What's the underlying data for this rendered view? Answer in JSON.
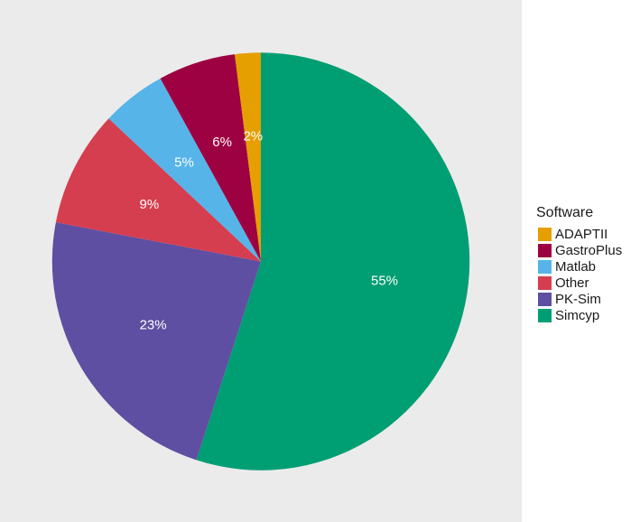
{
  "chart_data": {
    "type": "pie",
    "legend_title": "Software",
    "legend_position": "right",
    "start_angle_deg": 0,
    "direction": "clockwise",
    "slices": [
      {
        "name": "Simcyp",
        "value": 55,
        "label": "55%",
        "color": "#009E73"
      },
      {
        "name": "PK-Sim",
        "value": 23,
        "label": "23%",
        "color": "#5E4FA2"
      },
      {
        "name": "Other",
        "value": 9,
        "label": "9%",
        "color": "#D53E4F"
      },
      {
        "name": "Matlab",
        "value": 5,
        "label": "5%",
        "color": "#56B4E9"
      },
      {
        "name": "GastroPlus",
        "value": 6,
        "label": "6%",
        "color": "#9E0142"
      },
      {
        "name": "ADAPTII",
        "value": 2,
        "label": "2%",
        "color": "#E69F00"
      }
    ],
    "legend_order": [
      "ADAPTII",
      "GastroPlus",
      "Matlab",
      "Other",
      "PK-Sim",
      "Simcyp"
    ],
    "panel_background": "#EBEBEB"
  }
}
